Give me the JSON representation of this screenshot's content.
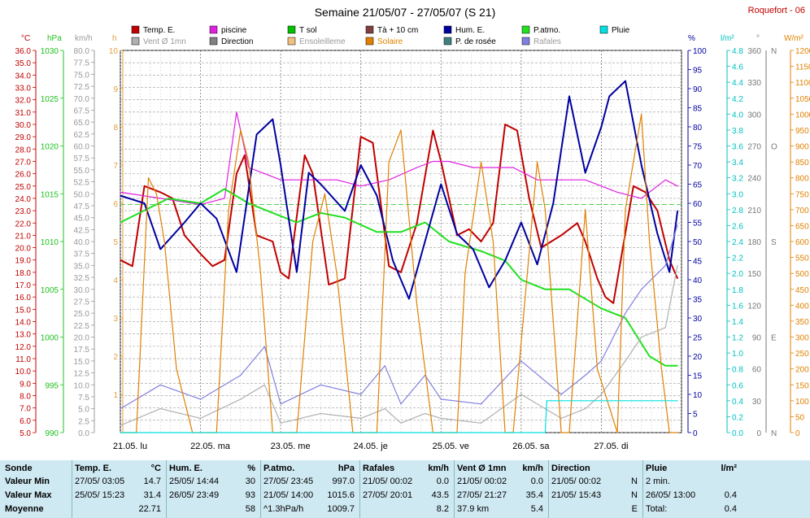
{
  "title": "Semaine 21/05/07 - 27/05/07 (S 21)",
  "station": "Roquefort - 06",
  "legend": [
    {
      "label": "Temp. E.",
      "color": "#c00000"
    },
    {
      "label": "piscine",
      "color": "#e020e0"
    },
    {
      "label": "T sol",
      "color": "#00c000"
    },
    {
      "label": "Tà + 10 cm",
      "color": "#804040"
    },
    {
      "label": "Hum. E.",
      "color": "#0000a0"
    },
    {
      "label": "P.atmo.",
      "color": "#20e020"
    },
    {
      "label": "Pluie",
      "color": "#00e0e0"
    },
    {
      "label": "Vent Ø 1mn",
      "color": "#b0b0b0"
    },
    {
      "label": "Direction",
      "color": "#808080"
    },
    {
      "label": "Ensoleilleme",
      "color": "#f0c080"
    },
    {
      "label": "Solaire",
      "color": "#e08000"
    },
    {
      "label": "P. de rosée",
      "color": "#408080"
    },
    {
      "label": "Rafales",
      "color": "#8080e0"
    }
  ],
  "axis_units": {
    "temp": "°C",
    "press": "hPa",
    "wind": "km/h",
    "sun": "h",
    "hum": "%",
    "rain": "l/m²",
    "dir": "°",
    "solar": "W/m²"
  },
  "chart_data": {
    "type": "line",
    "x_labels": [
      "21.05. lu",
      "22.05. ma",
      "23.05. me",
      "24.05. je",
      "25.05. ve",
      "26.05. sa",
      "27.05. di"
    ],
    "axes": {
      "temp_c": {
        "min": 5.0,
        "max": 36.0,
        "step": 0.5,
        "tick_labels": [
          "5.0",
          "6.0",
          "7.0",
          "8.0",
          "9.0",
          "10.0",
          "11.0",
          "12.0",
          "13.0",
          "14.0",
          "15.0",
          "16.0",
          "17.0",
          "18.0",
          "19.0",
          "20.0",
          "21.0",
          "22.0",
          "23.0",
          "24.0",
          "25.0",
          "26.0",
          "27.0",
          "28.0",
          "29.0",
          "30.0",
          "31.0",
          "32.0",
          "33.0",
          "34.0",
          "35.0",
          "36.0"
        ]
      },
      "pressure_hpa": {
        "min": 990,
        "max": 1030,
        "tick_labels": [
          "990",
          "995",
          "1000",
          "1005",
          "1010",
          "1015",
          "1020",
          "1025",
          "1030"
        ]
      },
      "wind_kmh": {
        "min": 0,
        "max": 80,
        "tick_labels": [
          "0.0",
          "2.5",
          "5.0",
          "7.5",
          "10.0",
          "12.5",
          "15.0",
          "17.5",
          "20.0",
          "22.5",
          "25.0",
          "27.5",
          "30.0",
          "32.5",
          "35.0",
          "37.5",
          "40.0",
          "42.5",
          "45.0",
          "47.5",
          "50.0",
          "52.5",
          "55.0",
          "57.5",
          "60.0",
          "62.5",
          "65.0",
          "67.5",
          "70.0",
          "72.5",
          "75.0",
          "77.5",
          "80.0"
        ]
      },
      "sun_h": {
        "min": 0,
        "max": 10,
        "tick_labels": [
          "1",
          "2",
          "3",
          "4",
          "5",
          "6",
          "7",
          "8",
          "9",
          "10"
        ]
      },
      "humidity_pct": {
        "min": 0,
        "max": 100,
        "tick_labels": [
          "0",
          "5",
          "10",
          "15",
          "20",
          "25",
          "30",
          "35",
          "40",
          "45",
          "50",
          "55",
          "60",
          "65",
          "70",
          "75",
          "80",
          "85",
          "90",
          "95",
          "100"
        ]
      },
      "rain_lm2": {
        "min": 0,
        "max": 4.8,
        "tick_labels": [
          "0.0",
          "0.2",
          "0.4",
          "0.6",
          "0.8",
          "1.0",
          "1.2",
          "1.4",
          "1.6",
          "1.8",
          "2.0",
          "2.2",
          "2.4",
          "2.6",
          "2.8",
          "3.0",
          "3.2",
          "3.4",
          "3.6",
          "3.8",
          "4.0",
          "4.2",
          "4.4",
          "4.6",
          "4.8"
        ]
      },
      "direction_deg": {
        "min": 0,
        "max": 360,
        "tick_labels": [
          "0",
          "N",
          "30",
          "60",
          "90",
          "E",
          "120",
          "150",
          "180",
          "S",
          "210",
          "240",
          "270",
          "O",
          "300",
          "330",
          "360",
          "N"
        ]
      },
      "solar_wm2": {
        "min": 0,
        "max": 1200,
        "tick_labels": [
          "0",
          "50",
          "100",
          "150",
          "200",
          "250",
          "300",
          "350",
          "400",
          "450",
          "500",
          "550",
          "600",
          "650",
          "700",
          "750",
          "800",
          "850",
          "900",
          "950",
          "1000",
          "1050",
          "1100",
          "1150",
          "1200"
        ]
      }
    },
    "series": [
      {
        "name": "Temp. E.",
        "axis": "temp_c",
        "color": "#c00000",
        "x_days": [
          0,
          0.15,
          0.3,
          0.5,
          0.65,
          0.8,
          1.0,
          1.15,
          1.3,
          1.45,
          1.55,
          1.7,
          1.9,
          2.0,
          2.1,
          2.3,
          2.4,
          2.6,
          2.8,
          3.0,
          3.15,
          3.35,
          3.5,
          3.7,
          3.9,
          4.0,
          4.2,
          4.35,
          4.5,
          4.65,
          4.8,
          4.95,
          5.1,
          5.25,
          5.5,
          5.7,
          5.8,
          5.95,
          6.05,
          6.15,
          6.4,
          6.55,
          6.7,
          6.85,
          6.95
        ],
        "values": [
          19.0,
          18.5,
          25.0,
          24.5,
          24.0,
          21.0,
          19.5,
          18.5,
          19.0,
          26.0,
          27.5,
          21.0,
          20.5,
          18.0,
          17.5,
          27.5,
          26.0,
          17.0,
          17.5,
          29.0,
          28.5,
          18.5,
          18.0,
          22.0,
          29.5,
          27.0,
          21.0,
          21.5,
          20.5,
          22.0,
          30.0,
          29.5,
          24.0,
          20.0,
          21.0,
          22.0,
          20.5,
          17.5,
          16.0,
          15.5,
          25.0,
          24.5,
          23.0,
          19.0,
          17.5
        ]
      },
      {
        "name": "piscine",
        "axis": "temp_c",
        "color": "#e020e0",
        "x_days": [
          0,
          0.5,
          1.0,
          1.3,
          1.45,
          1.6,
          1.8,
          2.0,
          2.4,
          2.7,
          3.0,
          3.35,
          3.7,
          3.9,
          4.1,
          4.4,
          4.7,
          4.9,
          5.2,
          5.5,
          5.8,
          6.2,
          6.5,
          6.8,
          6.95
        ],
        "values": [
          24.5,
          24.0,
          23.5,
          24.0,
          31.0,
          26.5,
          26.0,
          25.5,
          25.5,
          25.5,
          25.0,
          25.5,
          26.5,
          27.0,
          27.0,
          26.5,
          26.5,
          26.5,
          25.5,
          25.5,
          25.5,
          24.5,
          24.0,
          25.5,
          25.0
        ]
      },
      {
        "name": "P.atmo.",
        "axis": "pressure_hpa",
        "color": "#20e020",
        "x_days": [
          0,
          0.6,
          1.0,
          1.3,
          1.6,
          1.9,
          2.2,
          2.5,
          2.8,
          3.2,
          3.5,
          3.8,
          4.1,
          4.5,
          4.8,
          5.0,
          5.3,
          5.6,
          6.0,
          6.3,
          6.6,
          6.8,
          6.95
        ],
        "values": [
          1012.0,
          1014.5,
          1014.0,
          1015.5,
          1014.0,
          1013.0,
          1012.0,
          1013.0,
          1012.5,
          1011.0,
          1011.0,
          1012.0,
          1010.0,
          1009.0,
          1008.0,
          1006.0,
          1005.0,
          1005.0,
          1003.0,
          1002.0,
          998.0,
          997.0,
          997.0
        ]
      },
      {
        "name": "Hum. E.",
        "axis": "humidity_pct",
        "color": "#0000a0",
        "x_days": [
          0,
          0.3,
          0.5,
          0.8,
          1.0,
          1.2,
          1.45,
          1.7,
          1.9,
          2.0,
          2.2,
          2.35,
          2.5,
          2.8,
          3.0,
          3.2,
          3.4,
          3.6,
          3.8,
          4.0,
          4.2,
          4.4,
          4.6,
          4.8,
          5.0,
          5.2,
          5.4,
          5.6,
          5.8,
          6.0,
          6.1,
          6.3,
          6.5,
          6.7,
          6.85,
          6.95
        ],
        "values": [
          62,
          60,
          48,
          55,
          60,
          56,
          42,
          78,
          82,
          70,
          42,
          68,
          65,
          58,
          70,
          62,
          45,
          35,
          50,
          65,
          52,
          48,
          38,
          45,
          55,
          44,
          60,
          88,
          68,
          80,
          88,
          92,
          70,
          52,
          42,
          58
        ]
      },
      {
        "name": "Vent Ø 1mn",
        "axis": "wind_kmh",
        "color": "#b0b0b0",
        "x_days": [
          0,
          0.5,
          1.0,
          1.5,
          1.8,
          2.0,
          2.5,
          3.0,
          3.3,
          3.5,
          3.8,
          4.0,
          4.5,
          5.0,
          5.5,
          5.8,
          6.0,
          6.3,
          6.5,
          6.8,
          6.95
        ],
        "values": [
          1.5,
          5.0,
          3.0,
          7.0,
          10.0,
          2.0,
          4.0,
          3.0,
          5.0,
          2.0,
          4.0,
          3.0,
          2.0,
          8.0,
          3.0,
          5.0,
          8.0,
          15.0,
          20.0,
          22.0,
          35.0
        ]
      },
      {
        "name": "Rafales",
        "axis": "wind_kmh",
        "color": "#8080e0",
        "x_days": [
          0,
          0.5,
          1.0,
          1.5,
          1.8,
          2.0,
          2.5,
          3.0,
          3.3,
          3.5,
          3.8,
          4.0,
          4.5,
          5.0,
          5.5,
          5.8,
          6.0,
          6.3,
          6.5,
          6.8,
          6.95
        ],
        "values": [
          5.0,
          10.0,
          7.0,
          12.0,
          18.0,
          6.0,
          10.0,
          8.0,
          14.0,
          6.0,
          12.0,
          7.0,
          6.0,
          15.0,
          8.0,
          12.0,
          15.0,
          25.0,
          30.0,
          35.0,
          43.5
        ]
      },
      {
        "name": "Solaire",
        "axis": "solar_wm2",
        "color": "#e08000",
        "x_days": [
          0,
          0.2,
          0.35,
          0.45,
          0.55,
          0.7,
          0.9,
          1.2,
          1.35,
          1.5,
          1.6,
          1.75,
          1.9,
          2.2,
          2.4,
          2.55,
          2.7,
          2.9,
          3.2,
          3.35,
          3.5,
          3.7,
          3.9,
          4.2,
          4.3,
          4.5,
          4.65,
          4.8,
          4.9,
          5.2,
          5.3,
          5.5,
          5.6,
          5.8,
          5.95,
          6.2,
          6.3,
          6.5,
          6.6,
          6.75,
          6.85,
          6.95
        ],
        "values": [
          0,
          0,
          800,
          750,
          600,
          200,
          0,
          0,
          700,
          950,
          850,
          500,
          0,
          0,
          600,
          750,
          500,
          0,
          0,
          850,
          950,
          400,
          0,
          0,
          500,
          850,
          600,
          0,
          0,
          850,
          700,
          0,
          0,
          700,
          200,
          0,
          700,
          1000,
          600,
          200,
          0,
          0
        ]
      },
      {
        "name": "Pluie",
        "axis": "rain_lm2",
        "color": "#00e0e0",
        "x_days": [
          0,
          5.3,
          5.32,
          6.95
        ],
        "values": [
          0,
          0,
          0.4,
          0.4
        ]
      }
    ]
  },
  "table": {
    "row_labels": [
      "Sonde",
      "Valeur Min",
      "Valeur Max",
      "Moyenne"
    ],
    "columns": [
      {
        "head": "Temp. E.",
        "unit": "°C",
        "rows": [
          [
            "27/05/  03:05",
            "14.7"
          ],
          [
            "25/05/  15:23",
            "31.4"
          ],
          [
            "",
            "22.71"
          ]
        ]
      },
      {
        "head": "Hum. E.",
        "unit": "%",
        "rows": [
          [
            "25/05/  14:44",
            "30"
          ],
          [
            "26/05/  23:49",
            "93"
          ],
          [
            "",
            "58"
          ]
        ]
      },
      {
        "head": "P.atmo.",
        "unit": "hPa",
        "rows": [
          [
            "27/05/  23:45",
            "997.0"
          ],
          [
            "21/05/  14:00",
            "1015.6"
          ],
          [
            "^1.3hPa/h",
            "1009.7"
          ]
        ]
      },
      {
        "head": "Rafales",
        "unit": "km/h",
        "rows": [
          [
            "21/05/  00:02",
            "0.0"
          ],
          [
            "27/05/  20:01",
            "43.5"
          ],
          [
            "",
            "8.2"
          ]
        ]
      },
      {
        "head": "Vent Ø 1mn",
        "unit": "km/h",
        "rows": [
          [
            "21/05/  00:02",
            "0.0"
          ],
          [
            "27/05/  21:27",
            "35.4"
          ],
          [
            "37.9 km",
            "5.4"
          ]
        ]
      },
      {
        "head": "Direction",
        "unit": "",
        "rows": [
          [
            "21/05/  00:02",
            "N"
          ],
          [
            "21/05/  15:43",
            "N"
          ],
          [
            "",
            "E"
          ]
        ]
      },
      {
        "head": "Pluie",
        "unit": "l/m²",
        "rows": [
          [
            "2 min.",
            ""
          ],
          [
            "26/05/  13:00",
            "0.4"
          ],
          [
            "Total:",
            "0.4"
          ]
        ]
      }
    ]
  }
}
